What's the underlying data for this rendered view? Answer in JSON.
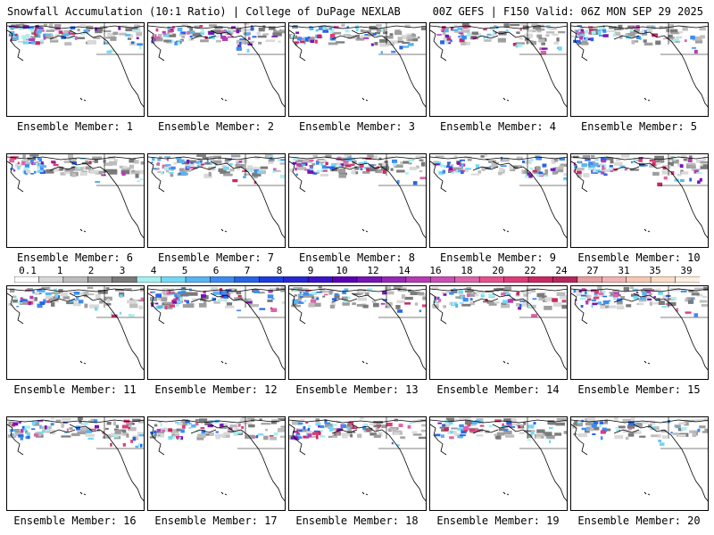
{
  "header": {
    "left_title": "Snowfall Accumulation (10:1 Ratio) | College of DuPage NEXLAB",
    "right_title": "00Z GEFS | F150 Valid: 06Z MON SEP 29 2025"
  },
  "colorbar": {
    "labels": [
      "0.1",
      "1",
      "2",
      "3",
      "4",
      "5",
      "6",
      "7",
      "8",
      "9",
      "10",
      "12",
      "14",
      "16",
      "18",
      "20",
      "22",
      "24",
      "27",
      "31",
      "35",
      "39"
    ],
    "colors": [
      "#ffffff",
      "#d9d9d9",
      "#bdbdbd",
      "#9e9e9e",
      "#7a7a7a",
      "#a8f0f0",
      "#74d8f5",
      "#58b4f2",
      "#3c8cf0",
      "#2864e6",
      "#1e3cdc",
      "#2828d2",
      "#3c14c8",
      "#5a00b4",
      "#7814b4",
      "#9628b4",
      "#b43cb4",
      "#c850b4",
      "#dc64aa",
      "#e6508c",
      "#dc3c78",
      "#c82864",
      "#b4285a",
      "#e6a0a0",
      "#f0b4b4",
      "#f5c8b4",
      "#fadcc8",
      "#fff0e1"
    ]
  },
  "members": [
    {
      "label": "Ensemble Member: 1",
      "intensity": 0.9
    },
    {
      "label": "Ensemble Member: 2",
      "intensity": 0.8
    },
    {
      "label": "Ensemble Member: 3",
      "intensity": 0.7
    },
    {
      "label": "Ensemble Member: 4",
      "intensity": 0.65
    },
    {
      "label": "Ensemble Member: 5",
      "intensity": 0.7
    },
    {
      "label": "Ensemble Member: 6",
      "intensity": 0.6
    },
    {
      "label": "Ensemble Member: 7",
      "intensity": 0.75
    },
    {
      "label": "Ensemble Member: 8",
      "intensity": 0.8
    },
    {
      "label": "Ensemble Member: 9",
      "intensity": 0.7
    },
    {
      "label": "Ensemble Member: 10",
      "intensity": 0.85
    },
    {
      "label": "Ensemble Member: 11",
      "intensity": 0.5
    },
    {
      "label": "Ensemble Member: 12",
      "intensity": 0.8
    },
    {
      "label": "Ensemble Member: 13",
      "intensity": 0.45
    },
    {
      "label": "Ensemble Member: 14",
      "intensity": 0.5
    },
    {
      "label": "Ensemble Member: 15",
      "intensity": 0.75
    },
    {
      "label": "Ensemble Member: 16",
      "intensity": 0.8
    },
    {
      "label": "Ensemble Member: 17",
      "intensity": 0.6
    },
    {
      "label": "Ensemble Member: 18",
      "intensity": 0.75
    },
    {
      "label": "Ensemble Member: 19",
      "intensity": 0.6
    },
    {
      "label": "Ensemble Member: 20",
      "intensity": 0.4
    }
  ]
}
